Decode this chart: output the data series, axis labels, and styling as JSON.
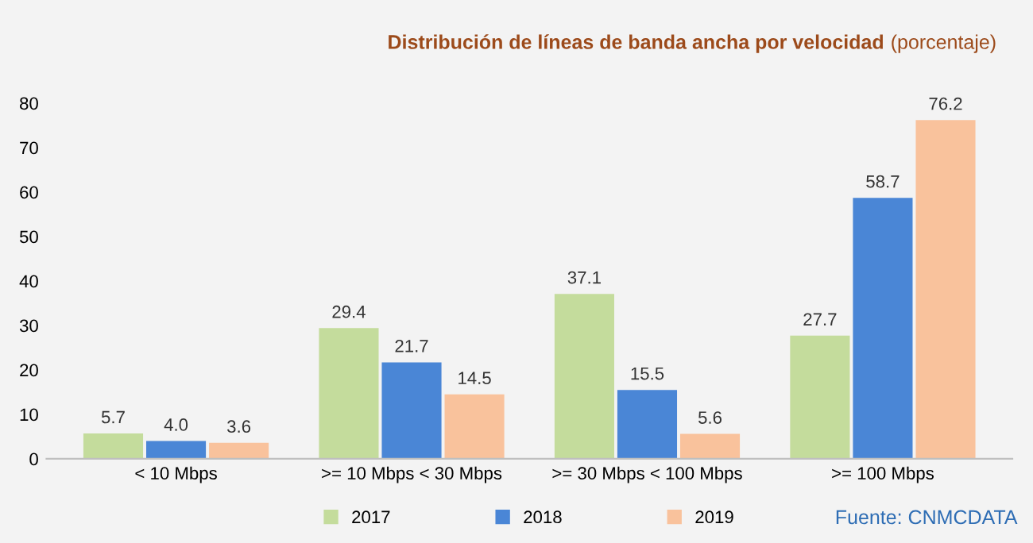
{
  "chart_data": {
    "type": "bar",
    "title": "Distribución de líneas de banda ancha por velocidad",
    "subtitle": "(porcentaje)",
    "categories": [
      "< 10 Mbps",
      ">= 10 Mbps < 30 Mbps",
      ">= 30 Mbps < 100 Mbps",
      ">= 100 Mbps"
    ],
    "series": [
      {
        "name": "2017",
        "color": "#c4dc9c",
        "values": [
          5.7,
          29.4,
          37.1,
          27.7
        ],
        "value_labels": [
          "5.7",
          "29.4",
          "37.1",
          "27.7"
        ]
      },
      {
        "name": "2018",
        "color": "#4a86d6",
        "values": [
          4.0,
          21.7,
          15.5,
          58.7
        ],
        "value_labels": [
          "4.0",
          "21.7",
          "15.5",
          "58.7"
        ]
      },
      {
        "name": "2019",
        "color": "#f9c29c",
        "values": [
          3.6,
          14.5,
          5.6,
          76.2
        ],
        "value_labels": [
          "3.6",
          "14.5",
          "5.6",
          "76.2"
        ]
      }
    ],
    "ylim": [
      0,
      80
    ],
    "yticks": [
      0,
      10,
      20,
      30,
      40,
      50,
      60,
      70,
      80
    ],
    "grid": false,
    "legend": "bottom",
    "annotations": [
      "Fuente: CNMCDATA"
    ]
  }
}
